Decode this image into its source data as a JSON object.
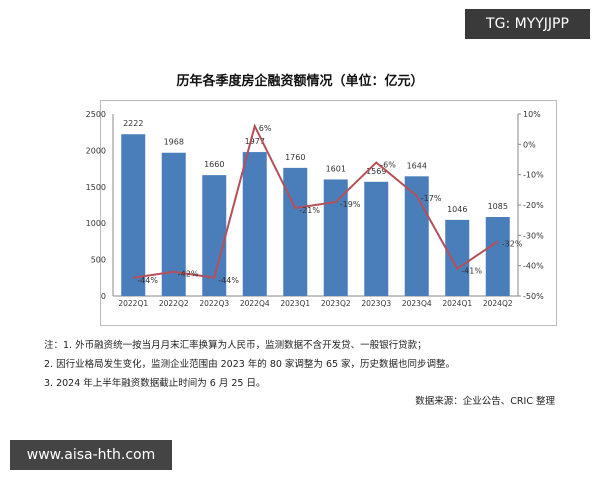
{
  "chart_data": {
    "type": "bar",
    "title": "历年各季度房企融资额情况（单位：亿元）",
    "categories": [
      "2022Q1",
      "2022Q2",
      "2022Q3",
      "2022Q4",
      "2023Q1",
      "2023Q2",
      "2023Q3",
      "2023Q4",
      "2024Q1",
      "2024Q2"
    ],
    "series": [
      {
        "type": "bar",
        "axis": "left",
        "color": "#4a7ebb",
        "values": [
          2222,
          1968,
          1660,
          1977,
          1760,
          1601,
          1569,
          1644,
          1046,
          1085
        ]
      },
      {
        "type": "line",
        "axis": "right",
        "color": "#b4505a",
        "values": [
          -44,
          -42,
          -44,
          6,
          -21,
          -19,
          -6,
          -17,
          -41,
          -32
        ],
        "label_suffix": "%"
      }
    ],
    "ylim": [
      0,
      2500
    ],
    "yticks": [
      0,
      500,
      1000,
      1500,
      2000,
      2500
    ],
    "y2lim": [
      -50,
      10
    ],
    "y2ticks": [
      "10%",
      "0%",
      "-10%",
      "-20%",
      "-30%",
      "-40%",
      "-50%"
    ],
    "grid": false
  },
  "notes": [
    "注：1. 外币融资统一按当月月末汇率换算为人民币，监测数据不含开发贷、一般银行贷款；",
    "2. 因行业格局发生变化，监测企业范围由 2023 年的 80 家调整为 65 家，历史数据也同步调整。",
    "3. 2024 年上半年融资数据截止时间为 6 月 25 日。"
  ],
  "source": "数据来源：企业公告、CRIC 整理",
  "watermarks": {
    "top": "TG: MYYJJPP",
    "bottom": "www.aisa-hth.com"
  }
}
